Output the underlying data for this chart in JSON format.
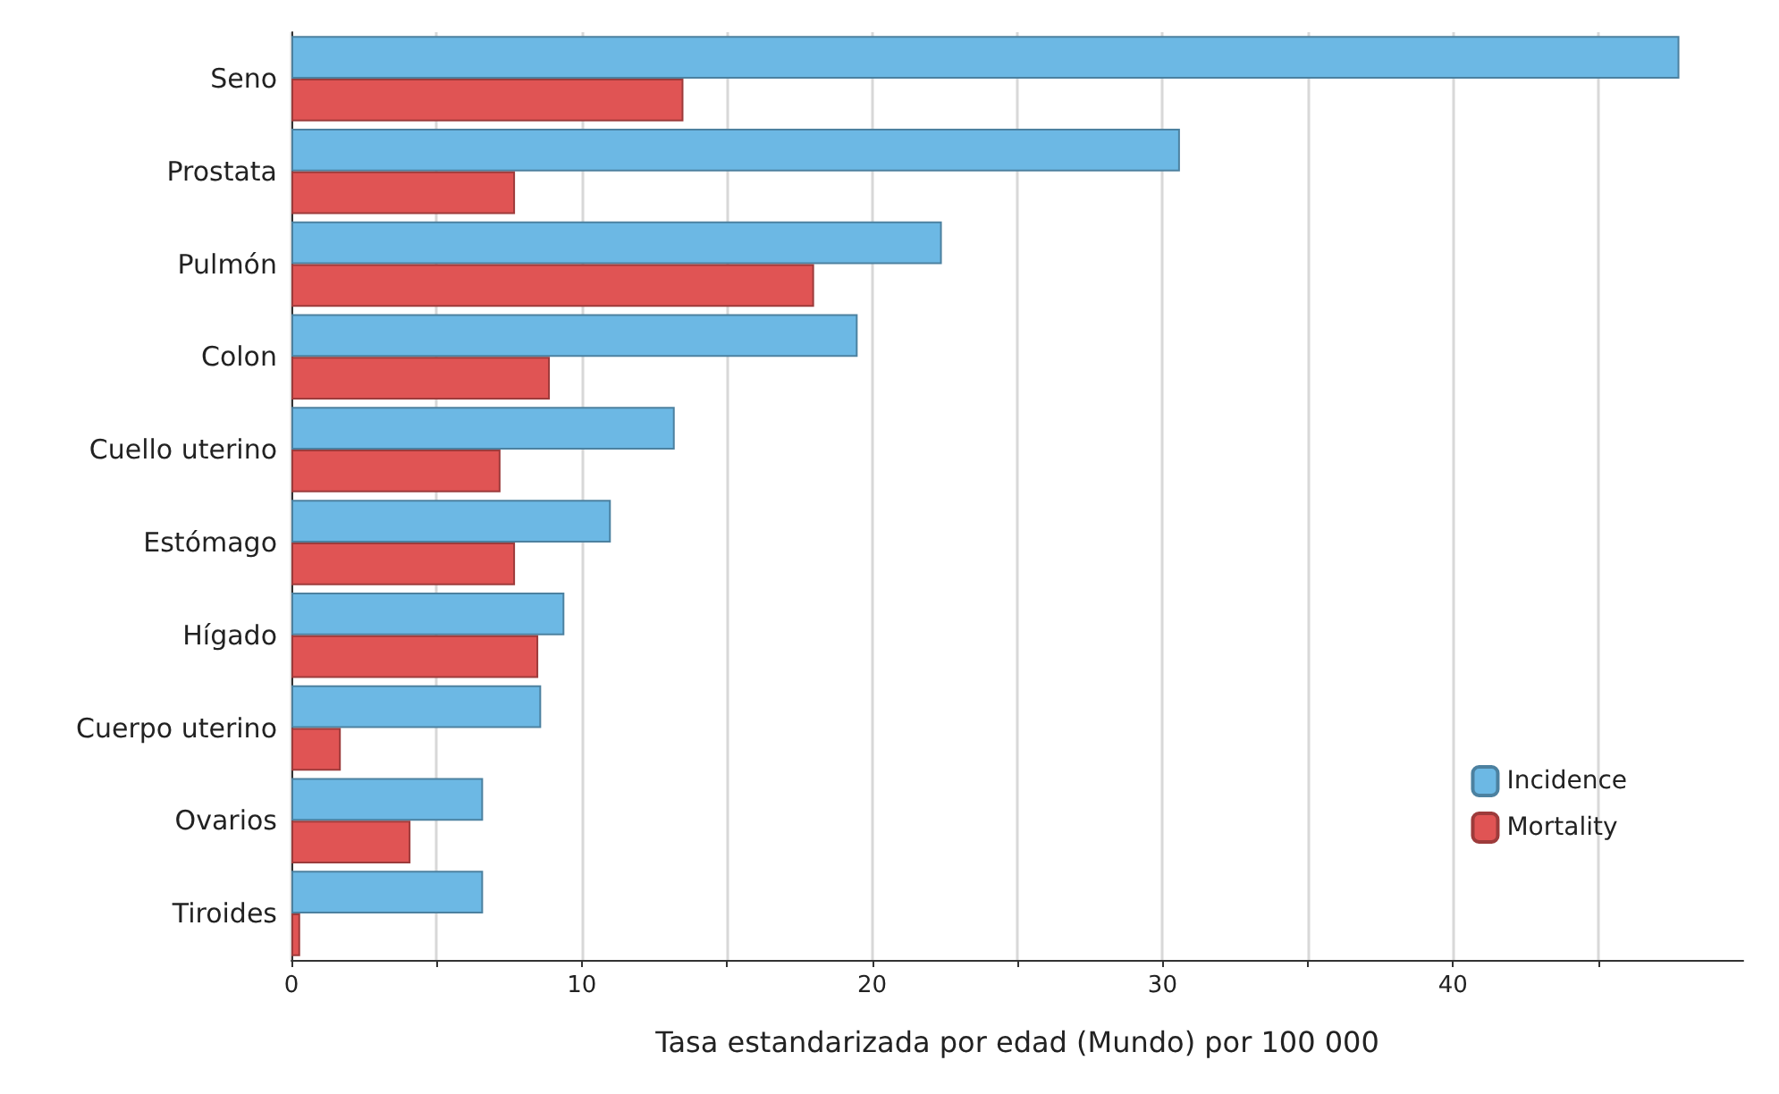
{
  "chart_data": {
    "type": "bar",
    "orientation": "horizontal",
    "xlabel": "Tasa estandarizada por edad (Mundo) por 100 000",
    "categories": [
      "Seno",
      "Prostata",
      "Pulmón",
      "Colon",
      "Cuello uterino",
      "Estómago",
      "Hígado",
      "Cuerpo uterino",
      "Ovarios",
      "Tiroides"
    ],
    "series": [
      {
        "name": "Incidence",
        "color": "#6cb8e4",
        "values": [
          47.8,
          30.6,
          22.4,
          19.5,
          13.2,
          11.0,
          9.4,
          8.6,
          6.6,
          6.6
        ]
      },
      {
        "name": "Mortality",
        "color": "#e05454",
        "values": [
          13.5,
          7.7,
          18.0,
          8.9,
          7.2,
          7.7,
          8.5,
          1.7,
          4.1,
          0.3
        ]
      }
    ],
    "xlim": [
      0,
      50
    ],
    "xticks": [
      0,
      {
        "value": 5,
        "label": null
      },
      10,
      {
        "value": 15,
        "label": null
      },
      20,
      {
        "value": 25,
        "label": null
      },
      30,
      {
        "value": 35,
        "label": null
      },
      40,
      {
        "value": 45,
        "label": null
      }
    ],
    "grid": "x",
    "legend": "bottom right"
  }
}
